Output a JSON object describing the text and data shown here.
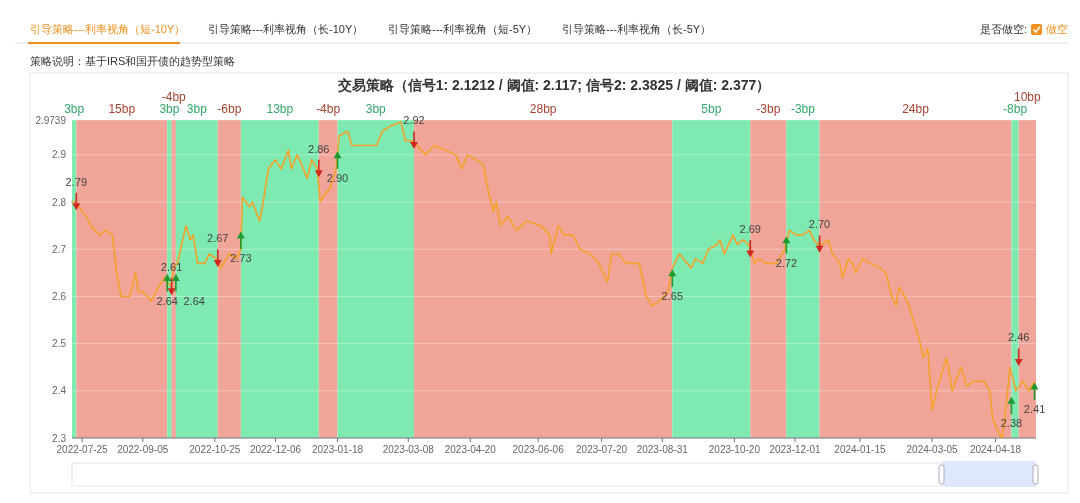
{
  "chart_data": {
    "type": "line",
    "title": "交易策略（信号1: 2.1212 / 阈值: 2.117; 信号2: 2.3825 / 阈值: 2.377）",
    "subtitle": "策略说明：基于IRS和国开债的趋势型策略",
    "annotations": [
      "引导策略---利率视角（短-10Y）",
      "引导策略---利率视角（长-10Y）",
      "引导策略---利率视角（短-5Y）",
      "引导策略---利率视角（长-5Y）",
      "是否做空:",
      "做空"
    ],
    "xlim": [
      "2022-07-18",
      "2024-05-16"
    ],
    "ylim": [
      2.3,
      2.9739
    ],
    "xticks": [
      "2022-07-25",
      "2022-09-05",
      "2022-10-25",
      "2022-12-06",
      "2023-01-18",
      "2023-03-08",
      "2023-04-20",
      "2023-06-06",
      "2023-07-20",
      "2023-08-31",
      "2023-10-20",
      "2023-12-01",
      "2024-01-15",
      "2024-03-05",
      "2024-04-18"
    ],
    "yticks": [
      2.3,
      2.4,
      2.5,
      2.6,
      2.7,
      2.8,
      2.9,
      2.9739
    ],
    "grid": "y",
    "series": [
      {
        "type": "line",
        "color": "#f5a02a",
        "marker": "none",
        "x": [
          "2022-07-18",
          "2022-07-21",
          "2022-07-25",
          "2022-07-28",
          "2022-07-31",
          "2022-08-06",
          "2022-08-10",
          "2022-08-15",
          "2022-08-18",
          "2022-08-21",
          "2022-08-27",
          "2022-08-31",
          "2022-09-02",
          "2022-09-05",
          "2022-09-11",
          "2022-09-14",
          "2022-09-20",
          "2022-09-22",
          "2022-09-25",
          "2022-09-26",
          "2022-09-29",
          "2022-10-05",
          "2022-10-08",
          "2022-10-10",
          "2022-10-13",
          "2022-10-18",
          "2022-10-21",
          "2022-10-26",
          "2022-10-29",
          "2022-11-04",
          "2022-11-09",
          "2022-11-12",
          "2022-11-13",
          "2022-11-18",
          "2022-11-20",
          "2022-11-25",
          "2022-11-27",
          "2022-12-01",
          "2022-12-06",
          "2022-12-10",
          "2022-12-15",
          "2022-12-17",
          "2022-12-21",
          "2022-12-24",
          "2022-12-28",
          "2022-12-31",
          "2023-01-04",
          "2023-01-06",
          "2023-01-10",
          "2023-01-13",
          "2023-01-17",
          "2023-01-19",
          "2023-01-25",
          "2023-01-28",
          "2023-02-02",
          "2023-02-14",
          "2023-02-18",
          "2023-02-23",
          "2023-03-03",
          "2023-03-06",
          "2023-03-11",
          "2023-03-20",
          "2023-03-26",
          "2023-04-03",
          "2023-04-10",
          "2023-04-14",
          "2023-04-18",
          "2023-04-24",
          "2023-04-29",
          "2023-05-02",
          "2023-05-06",
          "2023-05-08",
          "2023-05-11",
          "2023-05-16",
          "2023-05-22",
          "2023-05-29",
          "2023-06-08",
          "2023-06-14",
          "2023-06-15",
          "2023-06-20",
          "2023-06-24",
          "2023-06-30",
          "2023-07-05",
          "2023-07-12",
          "2023-07-18",
          "2023-07-24",
          "2023-07-27",
          "2023-08-01",
          "2023-08-06",
          "2023-08-15",
          "2023-08-20",
          "2023-08-24",
          "2023-08-29",
          "2023-09-04",
          "2023-09-07",
          "2023-09-12",
          "2023-09-20",
          "2023-09-23",
          "2023-09-28",
          "2023-10-02",
          "2023-10-08",
          "2023-10-10",
          "2023-10-13",
          "2023-10-19",
          "2023-10-22",
          "2023-10-26",
          "2023-10-30",
          "2023-11-03",
          "2023-11-06",
          "2023-11-11",
          "2023-11-18",
          "2023-11-24",
          "2023-11-27",
          "2023-12-02",
          "2023-12-06",
          "2023-12-11",
          "2023-12-14",
          "2023-12-17",
          "2023-12-20",
          "2023-12-24",
          "2023-12-27",
          "2024-01-01",
          "2024-01-03",
          "2024-01-07",
          "2024-01-10",
          "2024-01-12",
          "2024-01-17",
          "2024-01-22",
          "2024-01-29",
          "2024-02-02",
          "2024-02-06",
          "2024-02-09",
          "2024-02-11",
          "2024-02-15",
          "2024-02-18",
          "2024-02-25",
          "2024-02-28",
          "2024-03-02",
          "2024-03-05",
          "2024-03-09",
          "2024-03-15",
          "2024-03-19",
          "2024-03-25",
          "2024-03-29",
          "2024-04-03",
          "2024-04-10",
          "2024-04-14",
          "2024-04-16",
          "2024-04-22",
          "2024-04-24",
          "2024-04-28",
          "2024-05-02",
          "2024-05-07",
          "2024-05-11",
          "2024-05-15"
        ],
        "values": [
          2.8,
          2.8,
          2.78,
          2.77,
          2.75,
          2.73,
          2.74,
          2.73,
          2.65,
          2.6,
          2.6,
          2.65,
          2.61,
          2.61,
          2.59,
          2.61,
          2.64,
          2.63,
          2.62,
          2.66,
          2.67,
          2.75,
          2.72,
          2.73,
          2.67,
          2.67,
          2.69,
          2.68,
          2.66,
          2.69,
          2.68,
          2.7,
          2.81,
          2.79,
          2.8,
          2.76,
          2.79,
          2.87,
          2.89,
          2.87,
          2.91,
          2.87,
          2.9,
          2.88,
          2.85,
          2.89,
          2.87,
          2.8,
          2.82,
          2.83,
          2.87,
          2.94,
          2.95,
          2.92,
          2.92,
          2.92,
          2.95,
          2.96,
          2.97,
          2.93,
          2.93,
          2.9,
          2.92,
          2.91,
          2.9,
          2.87,
          2.9,
          2.89,
          2.88,
          2.83,
          2.78,
          2.8,
          2.75,
          2.77,
          2.74,
          2.76,
          2.75,
          2.73,
          2.69,
          2.75,
          2.73,
          2.73,
          2.7,
          2.69,
          2.67,
          2.63,
          2.69,
          2.69,
          2.67,
          2.67,
          2.6,
          2.58,
          2.59,
          2.61,
          2.66,
          2.69,
          2.66,
          2.68,
          2.67,
          2.7,
          2.71,
          2.72,
          2.69,
          2.73,
          2.71,
          2.72,
          2.71,
          2.67,
          2.68,
          2.67,
          2.67,
          2.7,
          2.74,
          2.73,
          2.73,
          2.74,
          2.72,
          2.71,
          2.71,
          2.72,
          2.69,
          2.67,
          2.64,
          2.68,
          2.67,
          2.65,
          2.68,
          2.67,
          2.66,
          2.65,
          2.6,
          2.58,
          2.62,
          2.6,
          2.58,
          2.51,
          2.47,
          2.49,
          2.36,
          2.41,
          2.47,
          2.4,
          2.45,
          2.41,
          2.42,
          2.42,
          2.4,
          2.34,
          2.3,
          2.33,
          2.45,
          2.4,
          2.42,
          2.4,
          2.42
        ]
      },
      {
        "type": "scatter",
        "color": "#d0281e",
        "marker": "triangle",
        "x": [
          "2022-07-21",
          "2022-09-25",
          "2022-10-27",
          "2023-01-05",
          "2023-03-12",
          "2023-10-31",
          "2023-12-18",
          "2024-05-04"
        ],
        "values": [
          2.79,
          2.61,
          2.67,
          2.86,
          2.92,
          2.69,
          2.7,
          2.46
        ],
        "value_labels": [
          "2.79",
          "2.61",
          "2.67",
          "2.86",
          "2.92",
          "2.69",
          "2.70",
          "2.46"
        ]
      },
      {
        "type": "scatter",
        "color": "#1e9a2e",
        "marker": "triangle",
        "x": [
          "2022-09-22",
          "2022-09-28",
          "2022-11-12",
          "2023-01-18",
          "2023-09-07",
          "2023-11-25",
          "2024-04-29",
          "2024-05-15"
        ],
        "values": [
          2.64,
          2.64,
          2.73,
          2.9,
          2.65,
          2.72,
          2.38,
          2.41
        ],
        "value_labels": [
          "2.64",
          "2.64",
          "2.73",
          "2.90",
          "2.65",
          "2.72",
          "2.38",
          "2.41"
        ]
      }
    ],
    "bands": [
      {
        "axis": "x",
        "from": "2022-07-18",
        "to": "2022-07-21",
        "label": "3bp",
        "color": "#7eeab2"
      },
      {
        "axis": "x",
        "from": "2022-07-21",
        "to": "2022-09-22",
        "label": "15bp",
        "color": "#f0a598"
      },
      {
        "axis": "x",
        "from": "2022-09-22",
        "to": "2022-09-25",
        "label": "3bp",
        "color": "#7eeab2"
      },
      {
        "axis": "x",
        "from": "2022-09-25",
        "to": "2022-09-28",
        "label": "-4bp",
        "color": "#f0a598"
      },
      {
        "axis": "x",
        "from": "2022-09-28",
        "to": "2022-10-27",
        "label": "3bp",
        "color": "#7eeab2"
      },
      {
        "axis": "x",
        "from": "2022-10-27",
        "to": "2022-11-12",
        "label": "-6bp",
        "color": "#f0a598"
      },
      {
        "axis": "x",
        "from": "2022-11-12",
        "to": "2023-01-05",
        "label": "13bp",
        "color": "#7eeab2"
      },
      {
        "axis": "x",
        "from": "2023-01-05",
        "to": "2023-01-18",
        "label": "-4bp",
        "color": "#f0a598"
      },
      {
        "axis": "x",
        "from": "2023-01-18",
        "to": "2023-03-12",
        "label": "3bp",
        "color": "#7eeab2"
      },
      {
        "axis": "x",
        "from": "2023-03-12",
        "to": "2023-09-07",
        "label": "28bp",
        "color": "#f0a598"
      },
      {
        "axis": "x",
        "from": "2023-09-07",
        "to": "2023-10-31",
        "label": "5bp",
        "color": "#7eeab2"
      },
      {
        "axis": "x",
        "from": "2023-10-31",
        "to": "2023-11-25",
        "label": "-3bp",
        "color": "#f0a598"
      },
      {
        "axis": "x",
        "from": "2023-11-25",
        "to": "2023-12-18",
        "label": "-3bp",
        "color": "#7eeab2"
      },
      {
        "axis": "x",
        "from": "2023-12-18",
        "to": "2024-04-29",
        "label": "24bp",
        "color": "#f0a598"
      },
      {
        "axis": "x",
        "from": "2024-04-29",
        "to": "2024-05-04",
        "label": "-8bp",
        "color": "#7eeab2"
      },
      {
        "axis": "x",
        "from": "2024-05-04",
        "to": "2024-05-16",
        "label": "10bp",
        "color": "#f0a598"
      }
    ]
  }
}
